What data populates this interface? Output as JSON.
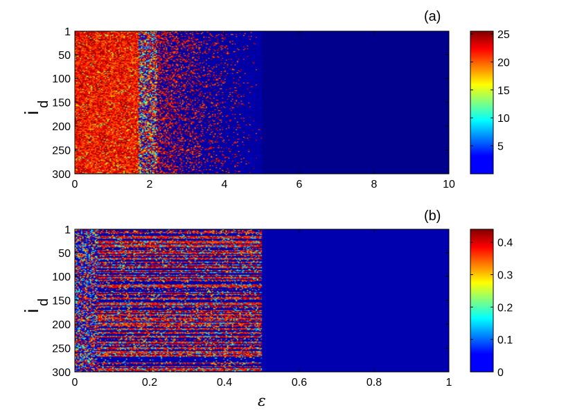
{
  "chart_data": [
    {
      "type": "heatmap",
      "panel_label": "(a)",
      "ylabel": "i",
      "ylabel_subscript": "d",
      "xlabel": "",
      "xlim": [
        0,
        10
      ],
      "ylim": [
        1,
        300
      ],
      "x_ticks": [
        "0",
        "2",
        "4",
        "6",
        "8",
        "10"
      ],
      "x_tick_values": [
        0,
        2,
        4,
        6,
        8,
        10
      ],
      "y_ticks": [
        "1",
        "50",
        "100",
        "150",
        "200",
        "250",
        "300"
      ],
      "y_tick_values": [
        1,
        50,
        100,
        150,
        200,
        250,
        300
      ],
      "y_reversed": true,
      "colormap": "jet",
      "clim": [
        0,
        25.5
      ],
      "colorbar_ticks": [
        "25",
        "20",
        "15",
        "10",
        "5"
      ],
      "colorbar_tick_values": [
        25,
        20,
        15,
        10,
        5
      ],
      "regions": [
        {
          "x_range": [
            0,
            1.8
          ],
          "description_value": "mostly 20-25"
        },
        {
          "x_range": [
            1.8,
            2.2
          ],
          "description_value": "mixed 5-25"
        },
        {
          "x_range": [
            2.2,
            5.0
          ],
          "description_value": "sparse 20-25 on background 0"
        },
        {
          "x_range": [
            5.0,
            10.0
          ],
          "description_value": "0"
        }
      ]
    },
    {
      "type": "heatmap",
      "panel_label": "(b)",
      "ylabel": "i",
      "ylabel_subscript": "d",
      "xlabel": "ε",
      "xlim": [
        0,
        1
      ],
      "ylim": [
        1,
        300
      ],
      "x_ticks": [
        "0",
        "0.2",
        "0.4",
        "0.6",
        "0.8",
        "1"
      ],
      "x_tick_values": [
        0,
        0.2,
        0.4,
        0.6,
        0.8,
        1
      ],
      "y_ticks": [
        "1",
        "50",
        "100",
        "150",
        "200",
        "250",
        "300"
      ],
      "y_tick_values": [
        1,
        50,
        100,
        150,
        200,
        250,
        300
      ],
      "y_reversed": true,
      "colormap": "jet",
      "clim": [
        0,
        0.44
      ],
      "colorbar_ticks": [
        "0.4",
        "0.3",
        "0.2",
        "0.1",
        "0"
      ],
      "colorbar_tick_values": [
        0.4,
        0.3,
        0.2,
        0.1,
        0
      ],
      "regions": [
        {
          "x_range": [
            0,
            0.06
          ],
          "description_value": "mixed 0-0.44"
        },
        {
          "x_range": [
            0.06,
            0.5
          ],
          "description_value": "horizontal streaks 0.3-0.44 on background 0"
        },
        {
          "x_range": [
            0.5,
            1.0
          ],
          "description_value": "0"
        }
      ]
    }
  ]
}
